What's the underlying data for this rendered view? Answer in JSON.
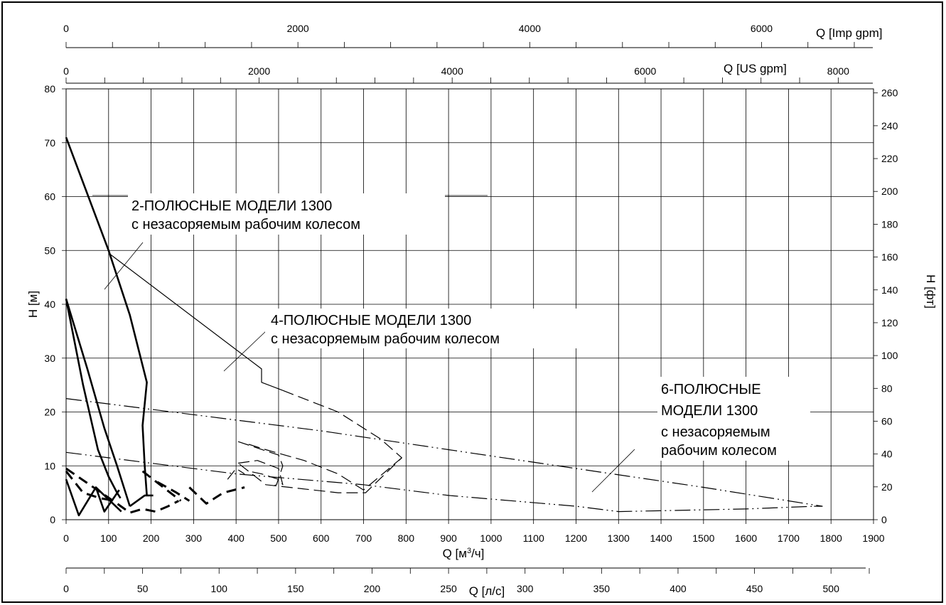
{
  "chart_data": {
    "type": "line",
    "x_axis": {
      "label": "Q [м³/ч]",
      "label_base": "Q [м",
      "label_sup": "3",
      "label_tail": "/ч]",
      "range": [
        0,
        1900
      ],
      "ticks": [
        "0",
        "100",
        "200",
        "300",
        "400",
        "500",
        "600",
        "700",
        "800",
        "900",
        "1000",
        "1100",
        "1200",
        "1300",
        "1400",
        "1500",
        "1600",
        "1700",
        "1800",
        "1900"
      ]
    },
    "y_axis": {
      "label": "H [м]",
      "range": [
        0,
        80
      ],
      "ticks": [
        "0",
        "10",
        "20",
        "30",
        "40",
        "50",
        "60",
        "70",
        "80"
      ]
    },
    "y2_axis": {
      "label": "H [фт]",
      "ticks": [
        "0",
        "20",
        "40",
        "60",
        "80",
        "100",
        "120",
        "140",
        "160",
        "180",
        "200",
        "220",
        "240",
        "260"
      ]
    },
    "top_axes": [
      {
        "label": "Q [US gpm]",
        "ticks": [
          "0",
          "2000",
          "4000",
          "6000",
          "8000"
        ]
      },
      {
        "label": "Q [Imp gpm]",
        "ticks": [
          "0",
          "2000",
          "4000",
          "6000"
        ]
      }
    ],
    "bottom_axis": {
      "label": "Q [л/с]",
      "ticks": [
        "0",
        "50",
        "100",
        "150",
        "200",
        "250",
        "300",
        "350",
        "400",
        "450",
        "500"
      ]
    },
    "grid": true,
    "annotations": [
      {
        "line1": "2-ПОЛЮСНЫЕ МОДЕЛИ 1300",
        "line2": "с незасоряемым рабочим колесом"
      },
      {
        "line1": "4-ПОЛЮСНЫЕ МОДЕЛИ 1300",
        "line2": "с незасоряемым рабочим колесом"
      },
      {
        "line1": "6-ПОЛЮСНЫЕ",
        "line2": "МОДЕЛИ 1300",
        "line3": "с незасоряемым",
        "line4": "рабочим колесом"
      }
    ],
    "series": [
      {
        "group": "2-pole",
        "style": "solid-thick",
        "x": [
          0,
          100,
          150,
          190,
          180,
          185,
          190
        ],
        "y": [
          71,
          50,
          38,
          25.5,
          17.5,
          10,
          4.5
        ]
      },
      {
        "group": "2-pole",
        "style": "solid-thick",
        "x": [
          0,
          50,
          90,
          120,
          140,
          150
        ],
        "y": [
          41,
          28,
          17,
          10,
          5,
          2.5
        ]
      },
      {
        "group": "2-pole",
        "style": "solid-thick",
        "x": [
          0,
          40,
          75,
          100,
          120,
          128
        ],
        "y": [
          41,
          25,
          13,
          8,
          5,
          4
        ]
      },
      {
        "group": "2-pole",
        "style": "solid-thick",
        "x": [
          0,
          30,
          70,
          90,
          125
        ],
        "y": [
          7.5,
          0.8,
          6,
          1.5,
          5.5
        ]
      },
      {
        "group": "2-pole",
        "style": "solid-thick",
        "x": [
          70,
          130
        ],
        "y": [
          6,
          1.5
        ]
      },
      {
        "group": "2-pole",
        "style": "solid-thick",
        "x": [
          150,
          185,
          205
        ],
        "y": [
          2.5,
          4.5,
          4.5
        ]
      },
      {
        "group": "2-pole",
        "style": "solid-thin",
        "x": [
          100,
          460,
          460,
          510
        ],
        "y": [
          49.5,
          28,
          25.5,
          24
        ]
      },
      {
        "group": "4-pole",
        "style": "dashed-thick",
        "x": [
          0,
          120,
          150,
          180,
          210,
          240,
          265
        ],
        "y": [
          9.5,
          3,
          1.3,
          2,
          1.5,
          2.5,
          3.5
        ]
      },
      {
        "group": "4-pole",
        "style": "dashed-thick",
        "x": [
          180,
          270
        ],
        "y": [
          9,
          3.5
        ]
      },
      {
        "group": "4-pole",
        "style": "dashed-thick",
        "x": [
          0,
          40,
          80,
          115
        ],
        "y": [
          9,
          5,
          4,
          3.5
        ]
      },
      {
        "group": "4-pole",
        "style": "dashed-thick",
        "x": [
          215,
          260,
          290
        ],
        "y": [
          7,
          5,
          3.5
        ]
      },
      {
        "group": "4-pole",
        "style": "dashed-thick",
        "x": [
          290,
          330,
          370,
          420
        ],
        "y": [
          6,
          3,
          5,
          6
        ]
      },
      {
        "group": "4-pole",
        "style": "dashed-thin",
        "x": [
          510,
          640,
          740,
          790,
          705,
          640,
          470,
          405
        ],
        "y": [
          24,
          20,
          15,
          11.5,
          5,
          5,
          6.5,
          10.5
        ]
      },
      {
        "group": "4-pole",
        "style": "dashed-thin",
        "x": [
          405,
          450,
          500,
          510,
          500,
          460,
          430
        ],
        "y": [
          10.5,
          11,
          9.5,
          6.5,
          7.5,
          8.5,
          9
        ]
      },
      {
        "group": "4-pole",
        "style": "dashed-thin",
        "x": [
          405,
          500,
          510,
          495,
          480
        ],
        "y": [
          14.5,
          12,
          10,
          6.5,
          6
        ]
      },
      {
        "group": "4-pole",
        "style": "dashed-thin",
        "x": [
          430,
          470,
          560,
          640,
          700,
          790
        ],
        "y": [
          14,
          13,
          11,
          8.5,
          5.5,
          11.5
        ]
      },
      {
        "group": "4-pole",
        "style": "dashed-thin",
        "x": [
          380,
          400,
          420
        ],
        "y": [
          7.5,
          9.5,
          8.5
        ]
      },
      {
        "group": "6-pole",
        "style": "dash-dot-dot",
        "x": [
          0,
          300,
          600,
          900,
          1200,
          1500,
          1780
        ],
        "y": [
          22.5,
          19.5,
          16.5,
          13,
          9.5,
          6,
          2.5
        ]
      },
      {
        "group": "6-pole",
        "style": "dash-dot-dot",
        "x": [
          0,
          200,
          400,
          700,
          900,
          1200,
          1300,
          1600,
          1760
        ],
        "y": [
          12.5,
          10.5,
          8.5,
          6.5,
          4.5,
          2.5,
          1.5,
          2,
          2.5
        ]
      },
      {
        "group": "6-pole",
        "style": "dash-dot-dot",
        "x": [
          1760,
          1780
        ],
        "y": [
          2.5,
          2.5
        ]
      }
    ]
  }
}
